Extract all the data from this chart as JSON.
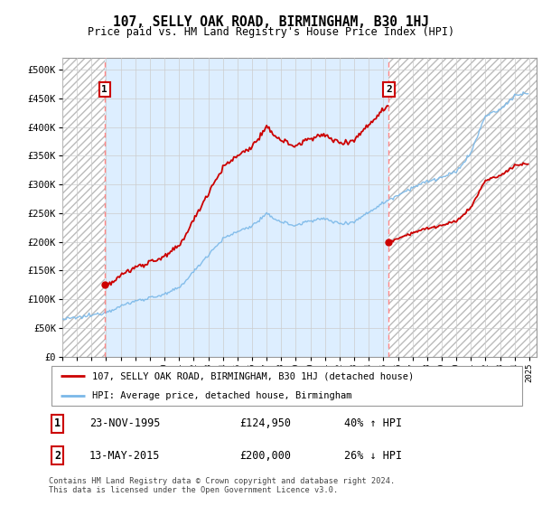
{
  "title": "107, SELLY OAK ROAD, BIRMINGHAM, B30 1HJ",
  "subtitle": "Price paid vs. HM Land Registry's House Price Index (HPI)",
  "sale1_date": "23-NOV-1995",
  "sale1_price": 124950,
  "sale1_pct": "40% ↑ HPI",
  "sale2_date": "13-MAY-2015",
  "sale2_price": 200000,
  "sale2_pct": "26% ↓ HPI",
  "legend_line1": "107, SELLY OAK ROAD, BIRMINGHAM, B30 1HJ (detached house)",
  "legend_line2": "HPI: Average price, detached house, Birmingham",
  "footer": "Contains HM Land Registry data © Crown copyright and database right 2024.\nThis data is licensed under the Open Government Licence v3.0.",
  "sale1_x": 1995.9,
  "sale2_x": 2015.37,
  "hpi_color": "#7ab8e8",
  "price_color": "#cc0000",
  "hatch_bg": "#f0f0f0",
  "owned_bg": "#ddeeff",
  "grid_color": "#cccccc",
  "ylim_max": 520000,
  "ylim_min": 0,
  "xlim_min": 1993.0,
  "xlim_max": 2025.5
}
